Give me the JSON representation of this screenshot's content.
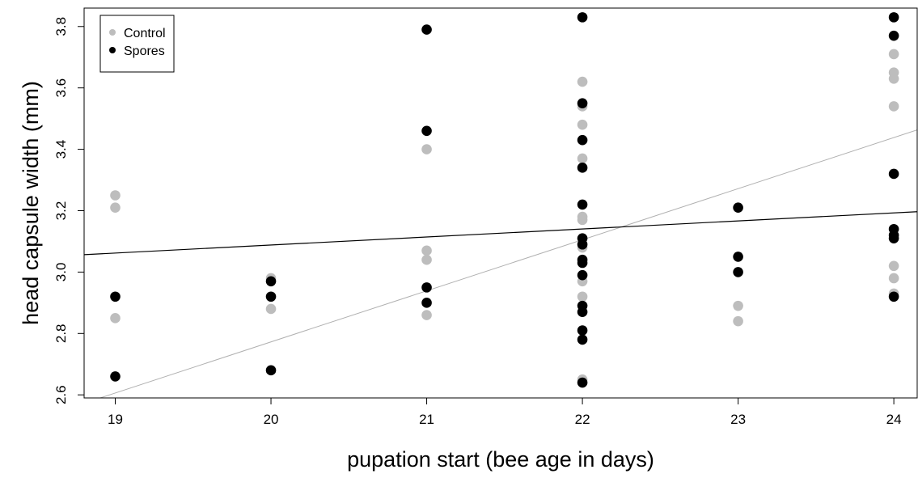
{
  "chart_data": {
    "type": "scatter",
    "title": "",
    "xlabel": "pupation start (bee age in days)",
    "ylabel": "head capsule width (mm)",
    "xlim": [
      18.8,
      24.15
    ],
    "ylim": [
      2.59,
      3.86
    ],
    "xticks": [
      19,
      20,
      21,
      22,
      23,
      24
    ],
    "yticks": [
      2.6,
      2.8,
      3.0,
      3.2,
      3.4,
      3.6,
      3.8
    ],
    "xtick_labels": [
      "19",
      "20",
      "21",
      "22",
      "23",
      "24"
    ],
    "ytick_labels": [
      "2.6",
      "2.8",
      "3.0",
      "3.2",
      "3.4",
      "3.6",
      "3.8"
    ],
    "grid": false,
    "legend_position": "top-left",
    "series": [
      {
        "name": "Control",
        "color": "#bdbdbd",
        "points": [
          [
            19,
            3.25
          ],
          [
            19,
            3.21
          ],
          [
            19,
            2.85
          ],
          [
            20,
            2.98
          ],
          [
            20,
            2.88
          ],
          [
            21,
            3.4
          ],
          [
            21,
            3.07
          ],
          [
            21,
            3.04
          ],
          [
            21,
            2.86
          ],
          [
            22,
            3.62
          ],
          [
            22,
            3.54
          ],
          [
            22,
            3.48
          ],
          [
            22,
            3.37
          ],
          [
            22,
            3.18
          ],
          [
            22,
            3.17
          ],
          [
            22,
            3.08
          ],
          [
            22,
            2.97
          ],
          [
            22,
            2.92
          ],
          [
            22,
            2.65
          ],
          [
            23,
            2.89
          ],
          [
            23,
            2.84
          ],
          [
            24,
            3.71
          ],
          [
            24,
            3.65
          ],
          [
            24,
            3.63
          ],
          [
            24,
            3.54
          ],
          [
            24,
            3.02
          ],
          [
            24,
            2.98
          ],
          [
            24,
            2.93
          ]
        ],
        "trend": {
          "intercept": -0.5555,
          "slope": 0.1664
        }
      },
      {
        "name": "Spores",
        "color": "#000000",
        "points": [
          [
            19,
            2.92
          ],
          [
            19,
            2.66
          ],
          [
            20,
            2.97
          ],
          [
            20,
            2.92
          ],
          [
            20,
            2.68
          ],
          [
            21,
            3.79
          ],
          [
            21,
            3.46
          ],
          [
            21,
            2.95
          ],
          [
            21,
            2.9
          ],
          [
            22,
            3.83
          ],
          [
            22,
            3.55
          ],
          [
            22,
            3.43
          ],
          [
            22,
            3.34
          ],
          [
            22,
            3.22
          ],
          [
            22,
            3.11
          ],
          [
            22,
            3.09
          ],
          [
            22,
            3.04
          ],
          [
            22,
            3.03
          ],
          [
            22,
            2.99
          ],
          [
            22,
            2.89
          ],
          [
            22,
            2.87
          ],
          [
            22,
            2.81
          ],
          [
            22,
            2.78
          ],
          [
            22,
            2.64
          ],
          [
            23,
            3.21
          ],
          [
            23,
            3.05
          ],
          [
            23,
            3.0
          ],
          [
            24,
            3.83
          ],
          [
            24,
            3.77
          ],
          [
            24,
            3.32
          ],
          [
            24,
            3.14
          ],
          [
            24,
            3.12
          ],
          [
            24,
            3.11
          ],
          [
            24,
            2.92
          ]
        ],
        "trend": {
          "intercept": 2.5647,
          "slope": 0.02617
        }
      }
    ]
  }
}
